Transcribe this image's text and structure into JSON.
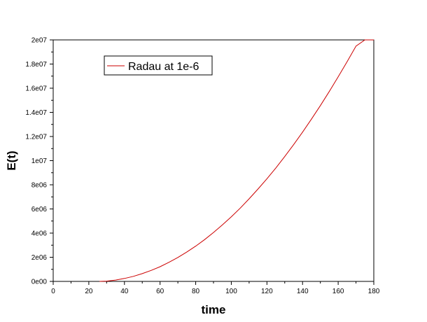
{
  "chart_data": {
    "type": "line",
    "xlabel": "time",
    "ylabel": "E(t)",
    "xlim": [
      0,
      180
    ],
    "ylim": [
      0,
      20000000
    ],
    "x_ticks": [
      0,
      20,
      40,
      60,
      80,
      100,
      120,
      140,
      160,
      180
    ],
    "x_tick_labels": [
      "0",
      "20",
      "40",
      "60",
      "80",
      "100",
      "120",
      "140",
      "160",
      "180"
    ],
    "y_ticks": [
      0,
      2000000,
      4000000,
      6000000,
      8000000,
      10000000,
      12000000,
      14000000,
      16000000,
      18000000,
      20000000
    ],
    "y_tick_labels": [
      "0e00",
      "2e06",
      "4e06",
      "6e06",
      "8e06",
      "1e07",
      "1.2e07",
      "1.4e07",
      "1.6e07",
      "1.8e07",
      "2e07"
    ],
    "grid": false,
    "legend_position": "top-left",
    "series": [
      {
        "name": "Radau at 1e-6",
        "color": "#cc0000",
        "x": [
          26,
          30,
          35,
          40,
          45,
          50,
          55,
          60,
          65,
          70,
          75,
          80,
          85,
          90,
          95,
          100,
          105,
          110,
          115,
          120,
          125,
          130,
          135,
          140,
          145,
          150,
          155,
          160,
          165,
          170,
          175,
          180
        ],
        "y": [
          0,
          23000,
          111000,
          243000,
          420000,
          642000,
          910000,
          1220000,
          1580000,
          1980000,
          2430000,
          2920000,
          3460000,
          4050000,
          4680000,
          5350000,
          6070000,
          6840000,
          7650000,
          8500000,
          9400000,
          10340000,
          11330000,
          12360000,
          13440000,
          14560000,
          15730000,
          16940000,
          18190000,
          19490000,
          20000000,
          20000000
        ]
      }
    ]
  }
}
